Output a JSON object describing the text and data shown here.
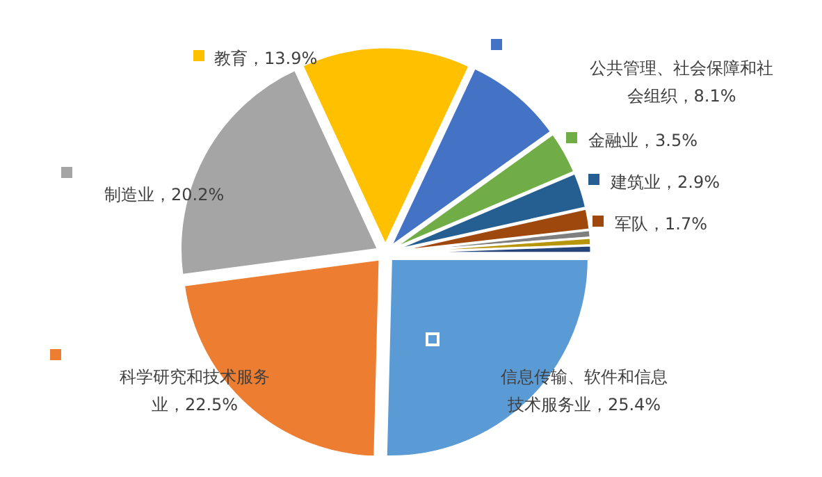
{
  "chart_data": {
    "type": "pie",
    "categories": [
      "信息传输、软件和信息技术服务业",
      "科学研究和技术服务业",
      "制造业",
      "教育",
      "公共管理、社会保障和社会组织",
      "金融业",
      "建筑业",
      "军队",
      null,
      null,
      null
    ],
    "values": [
      25.4,
      22.5,
      20.2,
      13.9,
      8.1,
      3.5,
      2.9,
      1.7,
      0.6,
      0.6,
      0.6
    ],
    "colors": [
      "#5b9bd5",
      "#ed7d31",
      "#a5a5a5",
      "#ffc000",
      "#4472c4",
      "#70ad47",
      "#255e91",
      "#9e480e",
      "#7f7f7f",
      "#b8960c",
      "#264478"
    ],
    "legend": "top right",
    "value_labels": [
      "25.4%",
      "22.5%",
      "20.2%",
      "13.9%",
      "8.1%",
      "3.5%",
      "2.9%",
      "1.7%",
      null,
      null,
      null
    ]
  }
}
